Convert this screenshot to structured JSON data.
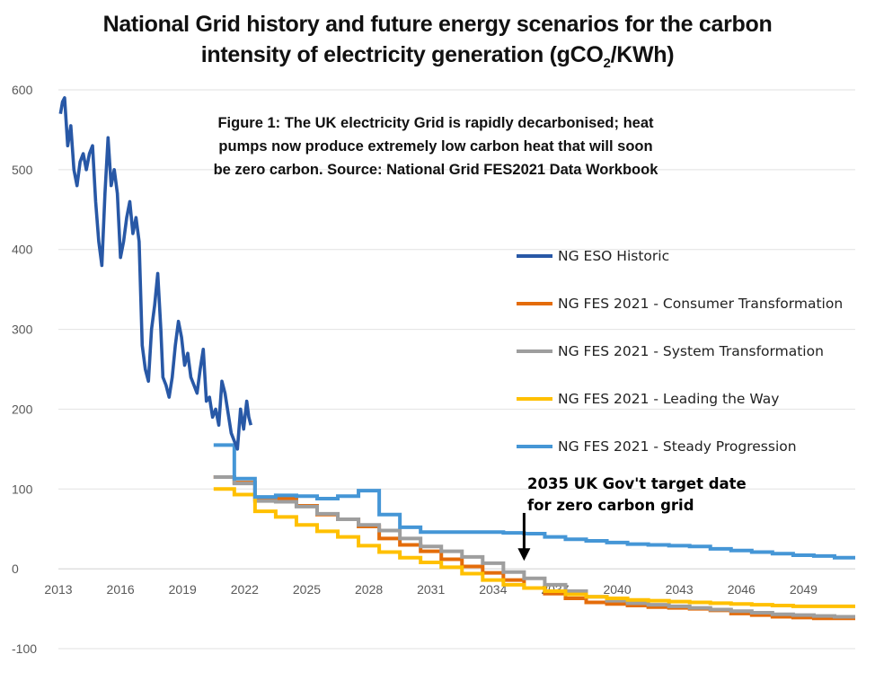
{
  "title_line1": "National Grid history and future energy scenarios for the carbon",
  "title_line2_prefix": "intensity of electricity generation (gCO",
  "title_line2_sub": "2",
  "title_line2_suffix": "/KWh)",
  "subtitle_lines": [
    "Figure 1: The UK electricity Grid is rapidly decarbonised; heat",
    "pumps now produce extremely low carbon heat that will soon",
    "be zero carbon. Source: National Grid FES2021 Data Workbook"
  ],
  "annotation_lines": [
    "2035 UK Gov't target date",
    "for zero carbon grid"
  ],
  "chart_data": {
    "type": "line",
    "xlim": [
      2013,
      2051.5
    ],
    "ylim": [
      -100,
      600
    ],
    "x_ticks": [
      "2013",
      "2016",
      "2019",
      "2022",
      "2025",
      "2028",
      "2031",
      "2034",
      "2037",
      "2040",
      "2043",
      "2046",
      "2049"
    ],
    "y_ticks": [
      "600",
      "500",
      "400",
      "300",
      "200",
      "100",
      "0",
      "-100"
    ],
    "grid": "horizontal",
    "legend_position": "center-right",
    "annotation": {
      "x": 2035.5,
      "y_from": 70,
      "y_to": 10
    },
    "series": [
      {
        "name": "NG ESO Historic",
        "color": "#2858a6",
        "style": "jagged",
        "points": [
          [
            2013.1,
            570
          ],
          [
            2013.2,
            585
          ],
          [
            2013.3,
            590
          ],
          [
            2013.45,
            530
          ],
          [
            2013.6,
            555
          ],
          [
            2013.75,
            500
          ],
          [
            2013.9,
            480
          ],
          [
            2014.05,
            510
          ],
          [
            2014.2,
            520
          ],
          [
            2014.35,
            500
          ],
          [
            2014.5,
            520
          ],
          [
            2014.65,
            530
          ],
          [
            2014.8,
            460
          ],
          [
            2014.95,
            410
          ],
          [
            2015.1,
            380
          ],
          [
            2015.25,
            470
          ],
          [
            2015.4,
            540
          ],
          [
            2015.55,
            480
          ],
          [
            2015.7,
            500
          ],
          [
            2015.85,
            470
          ],
          [
            2016.0,
            390
          ],
          [
            2016.15,
            410
          ],
          [
            2016.3,
            440
          ],
          [
            2016.45,
            460
          ],
          [
            2016.6,
            420
          ],
          [
            2016.75,
            440
          ],
          [
            2016.9,
            410
          ],
          [
            2017.05,
            280
          ],
          [
            2017.2,
            250
          ],
          [
            2017.35,
            235
          ],
          [
            2017.5,
            300
          ],
          [
            2017.65,
            330
          ],
          [
            2017.8,
            370
          ],
          [
            2017.95,
            300
          ],
          [
            2018.05,
            240
          ],
          [
            2018.2,
            230
          ],
          [
            2018.35,
            215
          ],
          [
            2018.5,
            240
          ],
          [
            2018.65,
            280
          ],
          [
            2018.8,
            310
          ],
          [
            2018.95,
            290
          ],
          [
            2019.1,
            255
          ],
          [
            2019.25,
            270
          ],
          [
            2019.4,
            240
          ],
          [
            2019.55,
            230
          ],
          [
            2019.7,
            220
          ],
          [
            2019.85,
            250
          ],
          [
            2020.0,
            275
          ],
          [
            2020.15,
            210
          ],
          [
            2020.3,
            215
          ],
          [
            2020.45,
            190
          ],
          [
            2020.6,
            200
          ],
          [
            2020.75,
            180
          ],
          [
            2020.9,
            235
          ],
          [
            2021.05,
            220
          ],
          [
            2021.2,
            195
          ],
          [
            2021.35,
            170
          ],
          [
            2021.5,
            160
          ],
          [
            2021.65,
            150
          ],
          [
            2021.8,
            200
          ],
          [
            2021.95,
            175
          ],
          [
            2022.1,
            210
          ],
          [
            2022.2,
            190
          ],
          [
            2022.3,
            180
          ]
        ]
      },
      {
        "name": "NG FES 2021 - Consumer Transformation",
        "color": "#e46c0a",
        "steps": [
          [
            2020.5,
            115
          ],
          [
            2021.5,
            108
          ],
          [
            2022.5,
            87
          ],
          [
            2023.5,
            88
          ],
          [
            2024.5,
            79
          ],
          [
            2025.5,
            68
          ],
          [
            2026.5,
            62
          ],
          [
            2027.5,
            53
          ],
          [
            2028.5,
            38
          ],
          [
            2029.5,
            30
          ],
          [
            2030.5,
            22
          ],
          [
            2031.5,
            12
          ],
          [
            2032.5,
            3
          ],
          [
            2033.5,
            -5
          ],
          [
            2034.5,
            -14
          ],
          [
            2035.5,
            -24
          ],
          [
            2036.5,
            -31
          ],
          [
            2037.5,
            -37
          ],
          [
            2038.5,
            -42
          ],
          [
            2039.5,
            -44
          ],
          [
            2040.5,
            -46
          ],
          [
            2041.5,
            -48
          ],
          [
            2042.5,
            -49
          ],
          [
            2043.5,
            -50
          ],
          [
            2044.5,
            -52
          ],
          [
            2045.5,
            -56
          ],
          [
            2046.5,
            -58
          ],
          [
            2047.5,
            -60
          ],
          [
            2048.5,
            -61
          ],
          [
            2049.5,
            -62
          ],
          [
            2050.5,
            -62
          ],
          [
            2051.5,
            -62
          ]
        ]
      },
      {
        "name": "NG FES 2021 - System Transformation",
        "color": "#9e9e9e",
        "steps": [
          [
            2020.5,
            115
          ],
          [
            2021.5,
            107
          ],
          [
            2022.5,
            85
          ],
          [
            2023.5,
            84
          ],
          [
            2024.5,
            78
          ],
          [
            2025.5,
            69
          ],
          [
            2026.5,
            62
          ],
          [
            2027.5,
            55
          ],
          [
            2028.5,
            48
          ],
          [
            2029.5,
            38
          ],
          [
            2030.5,
            28
          ],
          [
            2031.5,
            22
          ],
          [
            2032.5,
            15
          ],
          [
            2033.5,
            7
          ],
          [
            2034.5,
            -4
          ],
          [
            2035.5,
            -12
          ],
          [
            2036.5,
            -20
          ],
          [
            2037.5,
            -28
          ],
          [
            2038.5,
            -35
          ],
          [
            2039.5,
            -40
          ],
          [
            2040.5,
            -43
          ],
          [
            2041.5,
            -45
          ],
          [
            2042.5,
            -47
          ],
          [
            2043.5,
            -49
          ],
          [
            2044.5,
            -51
          ],
          [
            2045.5,
            -53
          ],
          [
            2046.5,
            -55
          ],
          [
            2047.5,
            -57
          ],
          [
            2048.5,
            -58
          ],
          [
            2049.5,
            -59
          ],
          [
            2050.5,
            -60
          ],
          [
            2051.5,
            -60
          ]
        ]
      },
      {
        "name": "NG FES 2021 - Leading the Way",
        "color": "#ffc000",
        "steps": [
          [
            2020.5,
            100
          ],
          [
            2021.5,
            93
          ],
          [
            2022.5,
            72
          ],
          [
            2023.5,
            65
          ],
          [
            2024.5,
            55
          ],
          [
            2025.5,
            47
          ],
          [
            2026.5,
            40
          ],
          [
            2027.5,
            29
          ],
          [
            2028.5,
            21
          ],
          [
            2029.5,
            14
          ],
          [
            2030.5,
            8
          ],
          [
            2031.5,
            2
          ],
          [
            2032.5,
            -6
          ],
          [
            2033.5,
            -14
          ],
          [
            2034.5,
            -20
          ],
          [
            2035.5,
            -24
          ],
          [
            2036.5,
            -28
          ],
          [
            2037.5,
            -32
          ],
          [
            2038.5,
            -35
          ],
          [
            2039.5,
            -37
          ],
          [
            2040.5,
            -39
          ],
          [
            2041.5,
            -40
          ],
          [
            2042.5,
            -41
          ],
          [
            2043.5,
            -42
          ],
          [
            2044.5,
            -43
          ],
          [
            2045.5,
            -44
          ],
          [
            2046.5,
            -45
          ],
          [
            2047.5,
            -46
          ],
          [
            2048.5,
            -47
          ],
          [
            2049.5,
            -47
          ],
          [
            2050.5,
            -47
          ],
          [
            2051.5,
            -47
          ]
        ]
      },
      {
        "name": "NG FES 2021 - Steady Progression",
        "color": "#4596d6",
        "steps": [
          [
            2020.5,
            155
          ],
          [
            2021.5,
            113
          ],
          [
            2022.5,
            90
          ],
          [
            2023.5,
            92
          ],
          [
            2024.5,
            91
          ],
          [
            2025.5,
            88
          ],
          [
            2026.5,
            91
          ],
          [
            2027.5,
            98
          ],
          [
            2028.5,
            68
          ],
          [
            2029.5,
            52
          ],
          [
            2030.5,
            46
          ],
          [
            2031.5,
            46
          ],
          [
            2032.5,
            46
          ],
          [
            2033.5,
            46
          ],
          [
            2034.5,
            45
          ],
          [
            2035.5,
            44
          ],
          [
            2036.5,
            40
          ],
          [
            2037.5,
            37
          ],
          [
            2038.5,
            35
          ],
          [
            2039.5,
            33
          ],
          [
            2040.5,
            31
          ],
          [
            2041.5,
            30
          ],
          [
            2042.5,
            29
          ],
          [
            2043.5,
            28
          ],
          [
            2044.5,
            25
          ],
          [
            2045.5,
            23
          ],
          [
            2046.5,
            21
          ],
          [
            2047.5,
            19
          ],
          [
            2048.5,
            17
          ],
          [
            2049.5,
            16
          ],
          [
            2050.5,
            14
          ],
          [
            2051.5,
            14
          ]
        ]
      }
    ]
  }
}
